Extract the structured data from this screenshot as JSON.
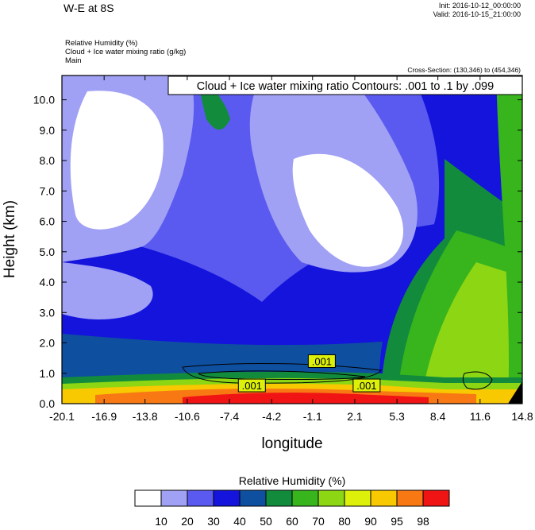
{
  "header": {
    "title": "W-E at 8S",
    "init": "Init: 2016-10-12_00:00:00",
    "valid": "Valid: 2016-10-15_21:00:00",
    "field_lines": [
      "Relative Humidity   (%)",
      "Cloud + Ice water mixing ratio   (g/kg)",
      "Main"
    ],
    "cross_section": "Cross-Section: (130,346) to (454,346)"
  },
  "chart_data": {
    "type": "heatmap",
    "xlabel": "longitude",
    "ylabel": "Height (km)",
    "xlim": [
      -20.1,
      14.8
    ],
    "ylim": [
      0.0,
      10.8
    ],
    "x_ticks": [
      -20.1,
      -16.9,
      -13.8,
      -10.6,
      -7.4,
      -4.2,
      -1.1,
      2.1,
      5.3,
      8.4,
      11.6,
      14.8
    ],
    "x_tick_labels": [
      "-20.1",
      "-16.9",
      "-13.8",
      "-10.6",
      "-7.4",
      "-4.2",
      "-1.1",
      "2.1",
      "5.3",
      "8.4",
      "11.6",
      "14.8"
    ],
    "y_ticks": [
      0,
      1,
      2,
      3,
      4,
      5,
      6,
      7,
      8,
      9,
      10
    ],
    "y_tick_labels": [
      "0.0",
      "1.0",
      "2.0",
      "3.0",
      "4.0",
      "5.0",
      "6.0",
      "7.0",
      "8.0",
      "9.0",
      "10.0"
    ],
    "contour_title": "Cloud + Ice water mixing ratio Contours: .001 to .1 by .099",
    "contour_labels": [
      {
        "text": ".001",
        "x": -0.4,
        "y": 1.4
      },
      {
        "text": ".001",
        "x": -5.7,
        "y": 0.6
      },
      {
        "text": ".001",
        "x": 3.0,
        "y": 0.6
      }
    ],
    "colorbar": {
      "title": "Relative Humidity  (%)",
      "levels": [
        "10",
        "20",
        "30",
        "40",
        "50",
        "60",
        "70",
        "80",
        "90",
        "95",
        "98"
      ],
      "colors": [
        "#ffffff",
        "#a0a0f5",
        "#5a5af0",
        "#1414dc",
        "#0f4f9f",
        "#128c3c",
        "#38b41c",
        "#8cd614",
        "#dcf00a",
        "#f8c800",
        "#f87814",
        "#f01414"
      ]
    }
  }
}
